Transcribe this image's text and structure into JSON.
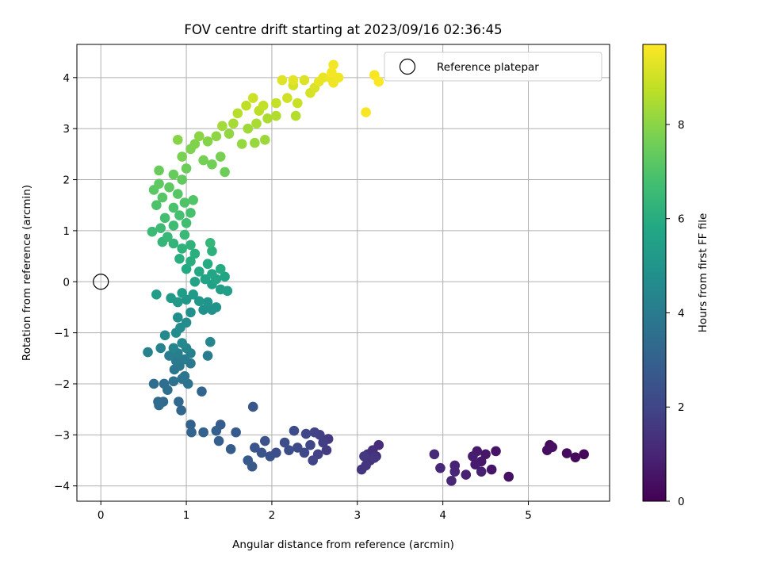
{
  "chart_data": {
    "type": "scatter",
    "title": "FOV centre drift starting at 2023/09/16 02:36:45",
    "xlabel": "Angular distance from reference (arcmin)",
    "ylabel": "Rotation from reference (arcmin)",
    "xlim": [
      -0.28,
      5.95
    ],
    "ylim": [
      -4.3,
      4.65
    ],
    "x_ticks": [
      0,
      1,
      2,
      3,
      4,
      5
    ],
    "y_ticks": [
      -4,
      -3,
      -2,
      -1,
      0,
      1,
      2,
      3,
      4
    ],
    "grid": true,
    "legend": {
      "position": "top-right",
      "entries": [
        "Reference platepar"
      ]
    },
    "reference_point": {
      "label": "Reference platepar",
      "x": 0,
      "y": 0,
      "marker": "open-circle"
    },
    "colorbar": {
      "label": "Hours from first FF file",
      "range": [
        0,
        9.7
      ],
      "ticks": [
        0,
        2,
        4,
        6,
        8
      ],
      "colormap": "viridis"
    },
    "series": [
      {
        "marker": "filled-circle",
        "color_by": "hours",
        "points": [
          {
            "x": 5.65,
            "y": -3.38,
            "h": 0.15
          },
          {
            "x": 5.55,
            "y": -3.44,
            "h": 0.2
          },
          {
            "x": 5.45,
            "y": -3.36,
            "h": 0.25
          },
          {
            "x": 5.25,
            "y": -3.2,
            "h": 0.3
          },
          {
            "x": 5.22,
            "y": -3.3,
            "h": 0.35
          },
          {
            "x": 5.28,
            "y": -3.24,
            "h": 0.4
          },
          {
            "x": 4.77,
            "y": -3.82,
            "h": 0.45
          },
          {
            "x": 4.62,
            "y": -3.32,
            "h": 0.5
          },
          {
            "x": 4.57,
            "y": -3.68,
            "h": 0.55
          },
          {
            "x": 4.5,
            "y": -3.38,
            "h": 0.6
          },
          {
            "x": 4.45,
            "y": -3.52,
            "h": 0.65
          },
          {
            "x": 4.4,
            "y": -3.32,
            "h": 0.7
          },
          {
            "x": 4.38,
            "y": -3.58,
            "h": 0.75
          },
          {
            "x": 4.35,
            "y": -3.42,
            "h": 0.8
          },
          {
            "x": 4.45,
            "y": -3.72,
            "h": 0.85
          },
          {
            "x": 4.27,
            "y": -3.78,
            "h": 0.9
          },
          {
            "x": 4.14,
            "y": -3.6,
            "h": 0.95
          },
          {
            "x": 4.14,
            "y": -3.72,
            "h": 1.0
          },
          {
            "x": 4.1,
            "y": -3.9,
            "h": 1.05
          },
          {
            "x": 3.97,
            "y": -3.65,
            "h": 1.1
          },
          {
            "x": 3.9,
            "y": -3.38,
            "h": 1.15
          },
          {
            "x": 3.25,
            "y": -3.2,
            "h": 1.2
          },
          {
            "x": 3.22,
            "y": -3.42,
            "h": 1.25
          },
          {
            "x": 3.18,
            "y": -3.3,
            "h": 1.3
          },
          {
            "x": 3.15,
            "y": -3.5,
            "h": 1.35
          },
          {
            "x": 3.12,
            "y": -3.38,
            "h": 1.4
          },
          {
            "x": 3.1,
            "y": -3.6,
            "h": 1.45
          },
          {
            "x": 3.05,
            "y": -3.68,
            "h": 1.5
          },
          {
            "x": 3.2,
            "y": -3.45,
            "h": 1.55
          },
          {
            "x": 3.08,
            "y": -3.42,
            "h": 1.6
          },
          {
            "x": 2.66,
            "y": -3.08,
            "h": 1.65
          },
          {
            "x": 2.64,
            "y": -3.3,
            "h": 1.7
          },
          {
            "x": 2.6,
            "y": -3.15,
            "h": 1.75
          },
          {
            "x": 2.56,
            "y": -3.0,
            "h": 1.8
          },
          {
            "x": 2.54,
            "y": -3.38,
            "h": 1.85
          },
          {
            "x": 2.5,
            "y": -2.95,
            "h": 1.9
          },
          {
            "x": 2.48,
            "y": -3.5,
            "h": 1.95
          },
          {
            "x": 2.45,
            "y": -3.2,
            "h": 2.0
          },
          {
            "x": 2.4,
            "y": -2.98,
            "h": 2.05
          },
          {
            "x": 2.38,
            "y": -3.35,
            "h": 2.1
          },
          {
            "x": 2.3,
            "y": -3.25,
            "h": 2.15
          },
          {
            "x": 2.26,
            "y": -2.92,
            "h": 2.2
          },
          {
            "x": 2.2,
            "y": -3.3,
            "h": 2.25
          },
          {
            "x": 2.15,
            "y": -3.15,
            "h": 2.3
          },
          {
            "x": 2.05,
            "y": -3.35,
            "h": 2.35
          },
          {
            "x": 1.98,
            "y": -3.42,
            "h": 2.4
          },
          {
            "x": 1.92,
            "y": -3.12,
            "h": 2.45
          },
          {
            "x": 1.88,
            "y": -3.35,
            "h": 2.5
          },
          {
            "x": 1.8,
            "y": -3.25,
            "h": 2.55
          },
          {
            "x": 1.78,
            "y": -2.45,
            "h": 2.6
          },
          {
            "x": 1.77,
            "y": -3.62,
            "h": 2.65
          },
          {
            "x": 1.72,
            "y": -3.5,
            "h": 2.7
          },
          {
            "x": 1.58,
            "y": -2.95,
            "h": 2.75
          },
          {
            "x": 1.52,
            "y": -3.28,
            "h": 2.8
          },
          {
            "x": 1.4,
            "y": -2.8,
            "h": 2.85
          },
          {
            "x": 1.38,
            "y": -3.12,
            "h": 2.9
          },
          {
            "x": 1.35,
            "y": -2.92,
            "h": 2.95
          },
          {
            "x": 1.2,
            "y": -2.95,
            "h": 3.0
          },
          {
            "x": 1.05,
            "y": -2.8,
            "h": 3.05
          },
          {
            "x": 1.06,
            "y": -2.95,
            "h": 3.1
          },
          {
            "x": 1.18,
            "y": -2.15,
            "h": 3.15
          },
          {
            "x": 0.94,
            "y": -2.52,
            "h": 3.2
          },
          {
            "x": 0.91,
            "y": -2.35,
            "h": 3.25
          },
          {
            "x": 0.73,
            "y": -2.35,
            "h": 3.3
          },
          {
            "x": 0.67,
            "y": -2.35,
            "h": 3.35
          },
          {
            "x": 0.68,
            "y": -2.42,
            "h": 3.4
          },
          {
            "x": 0.62,
            "y": -2.0,
            "h": 3.45
          },
          {
            "x": 0.74,
            "y": -2.0,
            "h": 3.5
          },
          {
            "x": 0.78,
            "y": -2.12,
            "h": 3.55
          },
          {
            "x": 0.85,
            "y": -1.95,
            "h": 3.6
          },
          {
            "x": 0.95,
            "y": -1.9,
            "h": 3.65
          },
          {
            "x": 1.02,
            "y": -2.0,
            "h": 3.7
          },
          {
            "x": 0.98,
            "y": -1.85,
            "h": 3.75
          },
          {
            "x": 0.86,
            "y": -1.72,
            "h": 3.8
          },
          {
            "x": 0.92,
            "y": -1.65,
            "h": 3.85
          },
          {
            "x": 1.05,
            "y": -1.6,
            "h": 3.9
          },
          {
            "x": 0.88,
            "y": -1.55,
            "h": 3.95
          },
          {
            "x": 0.98,
            "y": -1.52,
            "h": 4.0
          },
          {
            "x": 1.25,
            "y": -1.45,
            "h": 4.05
          },
          {
            "x": 0.8,
            "y": -1.45,
            "h": 4.1
          },
          {
            "x": 0.9,
            "y": -1.4,
            "h": 4.15
          },
          {
            "x": 1.05,
            "y": -1.4,
            "h": 4.2
          },
          {
            "x": 0.55,
            "y": -1.38,
            "h": 4.25
          },
          {
            "x": 0.7,
            "y": -1.3,
            "h": 4.3
          },
          {
            "x": 0.85,
            "y": -1.3,
            "h": 4.35
          },
          {
            "x": 1.0,
            "y": -1.3,
            "h": 4.4
          },
          {
            "x": 1.28,
            "y": -1.18,
            "h": 4.45
          },
          {
            "x": 0.95,
            "y": -1.2,
            "h": 4.5
          },
          {
            "x": 0.75,
            "y": -1.05,
            "h": 4.55
          },
          {
            "x": 0.88,
            "y": -1.0,
            "h": 4.6
          },
          {
            "x": 0.93,
            "y": -0.9,
            "h": 4.65
          },
          {
            "x": 1.0,
            "y": -0.8,
            "h": 4.7
          },
          {
            "x": 0.9,
            "y": -0.7,
            "h": 4.75
          },
          {
            "x": 1.05,
            "y": -0.6,
            "h": 4.8
          },
          {
            "x": 1.2,
            "y": -0.55,
            "h": 4.85
          },
          {
            "x": 1.3,
            "y": -0.55,
            "h": 4.9
          },
          {
            "x": 1.35,
            "y": -0.5,
            "h": 4.95
          },
          {
            "x": 1.25,
            "y": -0.4,
            "h": 5.0
          },
          {
            "x": 1.15,
            "y": -0.38,
            "h": 5.05
          },
          {
            "x": 1.0,
            "y": -0.35,
            "h": 5.1
          },
          {
            "x": 0.9,
            "y": -0.4,
            "h": 5.15
          },
          {
            "x": 0.82,
            "y": -0.32,
            "h": 5.2
          },
          {
            "x": 1.08,
            "y": -0.25,
            "h": 5.25
          },
          {
            "x": 0.95,
            "y": -0.22,
            "h": 5.3
          },
          {
            "x": 0.65,
            "y": -0.25,
            "h": 5.35
          },
          {
            "x": 1.4,
            "y": -0.15,
            "h": 5.4
          },
          {
            "x": 1.48,
            "y": -0.18,
            "h": 5.45
          },
          {
            "x": 1.3,
            "y": -0.05,
            "h": 5.5
          },
          {
            "x": 1.1,
            "y": 0.0,
            "h": 5.55
          },
          {
            "x": 1.22,
            "y": 0.05,
            "h": 5.6
          },
          {
            "x": 1.35,
            "y": 0.05,
            "h": 5.65
          },
          {
            "x": 1.45,
            "y": 0.1,
            "h": 5.7
          },
          {
            "x": 1.3,
            "y": 0.15,
            "h": 5.75
          },
          {
            "x": 1.15,
            "y": 0.2,
            "h": 5.8
          },
          {
            "x": 1.0,
            "y": 0.25,
            "h": 5.85
          },
          {
            "x": 1.4,
            "y": 0.25,
            "h": 5.9
          },
          {
            "x": 1.25,
            "y": 0.35,
            "h": 5.95
          },
          {
            "x": 1.05,
            "y": 0.4,
            "h": 6.0
          },
          {
            "x": 0.92,
            "y": 0.45,
            "h": 6.05
          },
          {
            "x": 1.1,
            "y": 0.55,
            "h": 6.1
          },
          {
            "x": 1.3,
            "y": 0.6,
            "h": 6.15
          },
          {
            "x": 0.95,
            "y": 0.65,
            "h": 6.2
          },
          {
            "x": 1.05,
            "y": 0.72,
            "h": 6.25
          },
          {
            "x": 0.85,
            "y": 0.75,
            "h": 6.3
          },
          {
            "x": 0.72,
            "y": 0.78,
            "h": 6.35
          },
          {
            "x": 1.28,
            "y": 0.76,
            "h": 6.4
          },
          {
            "x": 0.78,
            "y": 0.88,
            "h": 6.45
          },
          {
            "x": 0.98,
            "y": 0.92,
            "h": 6.5
          },
          {
            "x": 0.6,
            "y": 0.98,
            "h": 6.55
          },
          {
            "x": 0.7,
            "y": 1.05,
            "h": 6.6
          },
          {
            "x": 0.85,
            "y": 1.1,
            "h": 6.65
          },
          {
            "x": 1.0,
            "y": 1.15,
            "h": 6.7
          },
          {
            "x": 0.75,
            "y": 1.25,
            "h": 6.75
          },
          {
            "x": 0.92,
            "y": 1.3,
            "h": 6.8
          },
          {
            "x": 1.05,
            "y": 1.35,
            "h": 6.85
          },
          {
            "x": 0.85,
            "y": 1.45,
            "h": 6.9
          },
          {
            "x": 0.65,
            "y": 1.5,
            "h": 6.95
          },
          {
            "x": 0.98,
            "y": 1.55,
            "h": 7.0
          },
          {
            "x": 1.08,
            "y": 1.6,
            "h": 7.05
          },
          {
            "x": 0.72,
            "y": 1.65,
            "h": 7.1
          },
          {
            "x": 0.9,
            "y": 1.72,
            "h": 7.15
          },
          {
            "x": 0.62,
            "y": 1.8,
            "h": 7.2
          },
          {
            "x": 0.8,
            "y": 1.85,
            "h": 7.25
          },
          {
            "x": 0.68,
            "y": 1.92,
            "h": 7.3
          },
          {
            "x": 0.95,
            "y": 2.0,
            "h": 7.35
          },
          {
            "x": 0.85,
            "y": 2.1,
            "h": 7.4
          },
          {
            "x": 0.68,
            "y": 2.18,
            "h": 7.45
          },
          {
            "x": 1.0,
            "y": 2.22,
            "h": 7.5
          },
          {
            "x": 1.45,
            "y": 2.15,
            "h": 7.55
          },
          {
            "x": 1.3,
            "y": 2.3,
            "h": 7.6
          },
          {
            "x": 1.2,
            "y": 2.38,
            "h": 7.65
          },
          {
            "x": 1.4,
            "y": 2.45,
            "h": 7.7
          },
          {
            "x": 0.95,
            "y": 2.45,
            "h": 7.75
          },
          {
            "x": 1.05,
            "y": 2.6,
            "h": 7.8
          },
          {
            "x": 1.1,
            "y": 2.7,
            "h": 7.85
          },
          {
            "x": 1.25,
            "y": 2.75,
            "h": 7.9
          },
          {
            "x": 0.9,
            "y": 2.78,
            "h": 7.95
          },
          {
            "x": 1.15,
            "y": 2.85,
            "h": 8.0
          },
          {
            "x": 1.35,
            "y": 2.85,
            "h": 8.05
          },
          {
            "x": 1.5,
            "y": 2.9,
            "h": 8.1
          },
          {
            "x": 1.65,
            "y": 2.7,
            "h": 8.15
          },
          {
            "x": 1.8,
            "y": 2.72,
            "h": 8.2
          },
          {
            "x": 1.92,
            "y": 2.78,
            "h": 8.25
          },
          {
            "x": 1.72,
            "y": 3.0,
            "h": 8.3
          },
          {
            "x": 1.42,
            "y": 3.05,
            "h": 8.35
          },
          {
            "x": 1.55,
            "y": 3.1,
            "h": 8.4
          },
          {
            "x": 1.82,
            "y": 3.1,
            "h": 8.45
          },
          {
            "x": 1.95,
            "y": 3.2,
            "h": 8.5
          },
          {
            "x": 2.05,
            "y": 3.25,
            "h": 8.55
          },
          {
            "x": 2.28,
            "y": 3.25,
            "h": 8.6
          },
          {
            "x": 1.6,
            "y": 3.3,
            "h": 8.65
          },
          {
            "x": 1.85,
            "y": 3.35,
            "h": 8.7
          },
          {
            "x": 1.7,
            "y": 3.45,
            "h": 8.75
          },
          {
            "x": 1.9,
            "y": 3.45,
            "h": 8.8
          },
          {
            "x": 2.05,
            "y": 3.5,
            "h": 8.85
          },
          {
            "x": 2.3,
            "y": 3.5,
            "h": 8.9
          },
          {
            "x": 1.78,
            "y": 3.6,
            "h": 8.95
          },
          {
            "x": 2.18,
            "y": 3.6,
            "h": 9.0
          },
          {
            "x": 2.25,
            "y": 3.85,
            "h": 9.05
          },
          {
            "x": 2.45,
            "y": 3.7,
            "h": 9.1
          },
          {
            "x": 2.5,
            "y": 3.8,
            "h": 9.15
          },
          {
            "x": 2.38,
            "y": 3.95,
            "h": 9.2
          },
          {
            "x": 2.12,
            "y": 3.95,
            "h": 9.25
          },
          {
            "x": 2.25,
            "y": 3.95,
            "h": 9.3
          },
          {
            "x": 2.55,
            "y": 3.92,
            "h": 9.35
          },
          {
            "x": 2.6,
            "y": 4.0,
            "h": 9.4
          },
          {
            "x": 2.68,
            "y": 4.0,
            "h": 9.45
          },
          {
            "x": 2.72,
            "y": 3.9,
            "h": 9.5
          },
          {
            "x": 2.78,
            "y": 4.0,
            "h": 9.52
          },
          {
            "x": 2.72,
            "y": 4.25,
            "h": 9.55
          },
          {
            "x": 2.7,
            "y": 4.1,
            "h": 9.58
          },
          {
            "x": 3.1,
            "y": 3.32,
            "h": 9.6
          },
          {
            "x": 3.2,
            "y": 4.05,
            "h": 9.62
          },
          {
            "x": 3.25,
            "y": 3.92,
            "h": 9.65
          }
        ]
      }
    ]
  }
}
